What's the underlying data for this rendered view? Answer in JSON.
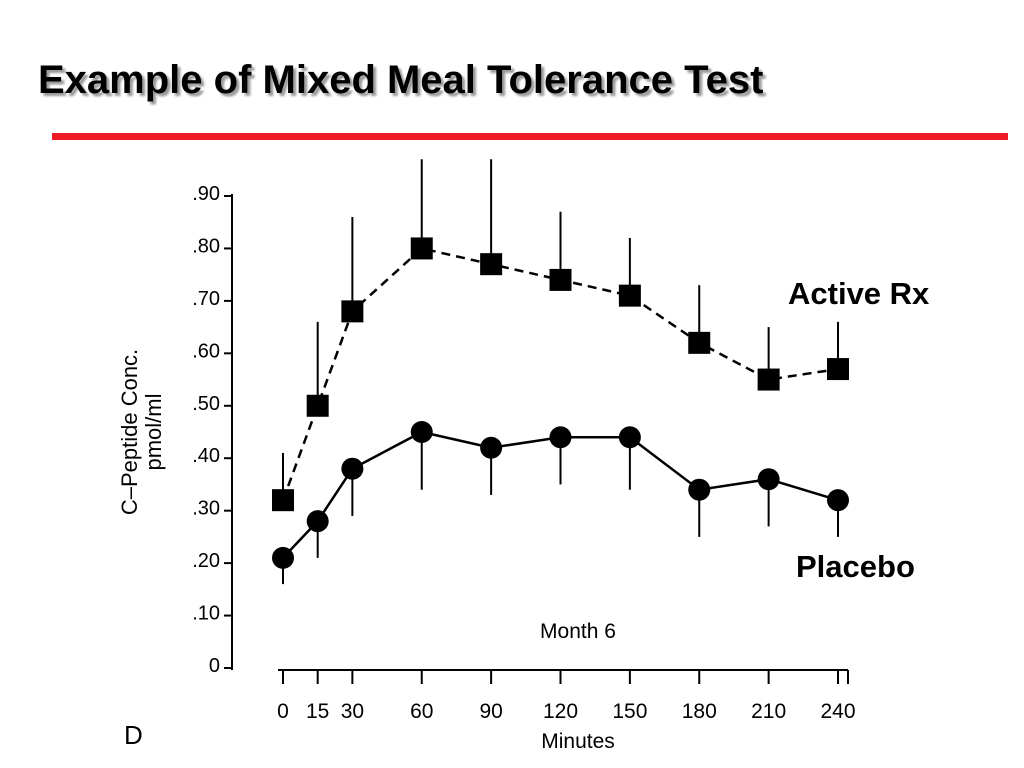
{
  "slide": {
    "title": "Example of Mixed Meal Tolerance Test",
    "title_rule_color": "#ee1c24",
    "panel_letter": "D"
  },
  "chart_data": {
    "type": "line",
    "title": "",
    "annotation": "Month 6",
    "xlabel": "Minutes",
    "ylabel": [
      "C–Peptide Conc.",
      "pmol/ml"
    ],
    "x": [
      0,
      15,
      30,
      60,
      90,
      120,
      150,
      180,
      210,
      240
    ],
    "x_tick_labels": [
      "0",
      "15",
      "30",
      "60",
      "90",
      "120",
      "150",
      "180",
      "210",
      "240"
    ],
    "xlim": [
      -5,
      250
    ],
    "ylim": [
      0,
      0.9
    ],
    "y_ticks": [
      0,
      0.1,
      0.2,
      0.3,
      0.4,
      0.5,
      0.6,
      0.7,
      0.8,
      0.9
    ],
    "y_tick_labels": [
      "0",
      ".10",
      ".20",
      ".30",
      ".40",
      ".50",
      ".60",
      ".70",
      ".80",
      ".90"
    ],
    "grid": false,
    "series": [
      {
        "name": "Active Rx",
        "marker": "square",
        "line_style": "dashed",
        "values": [
          0.32,
          0.5,
          0.68,
          0.8,
          0.77,
          0.74,
          0.71,
          0.62,
          0.55,
          0.57
        ],
        "error_upper": [
          0.41,
          0.66,
          0.86,
          0.97,
          0.97,
          0.87,
          0.82,
          0.73,
          0.65,
          0.66
        ]
      },
      {
        "name": "Placebo",
        "marker": "circle",
        "line_style": "solid",
        "values": [
          0.21,
          0.28,
          0.38,
          0.45,
          0.42,
          0.44,
          0.44,
          0.34,
          0.36,
          0.32
        ],
        "error_lower": [
          0.16,
          0.21,
          0.29,
          0.34,
          0.33,
          0.35,
          0.34,
          0.25,
          0.27,
          0.25
        ]
      }
    ]
  }
}
